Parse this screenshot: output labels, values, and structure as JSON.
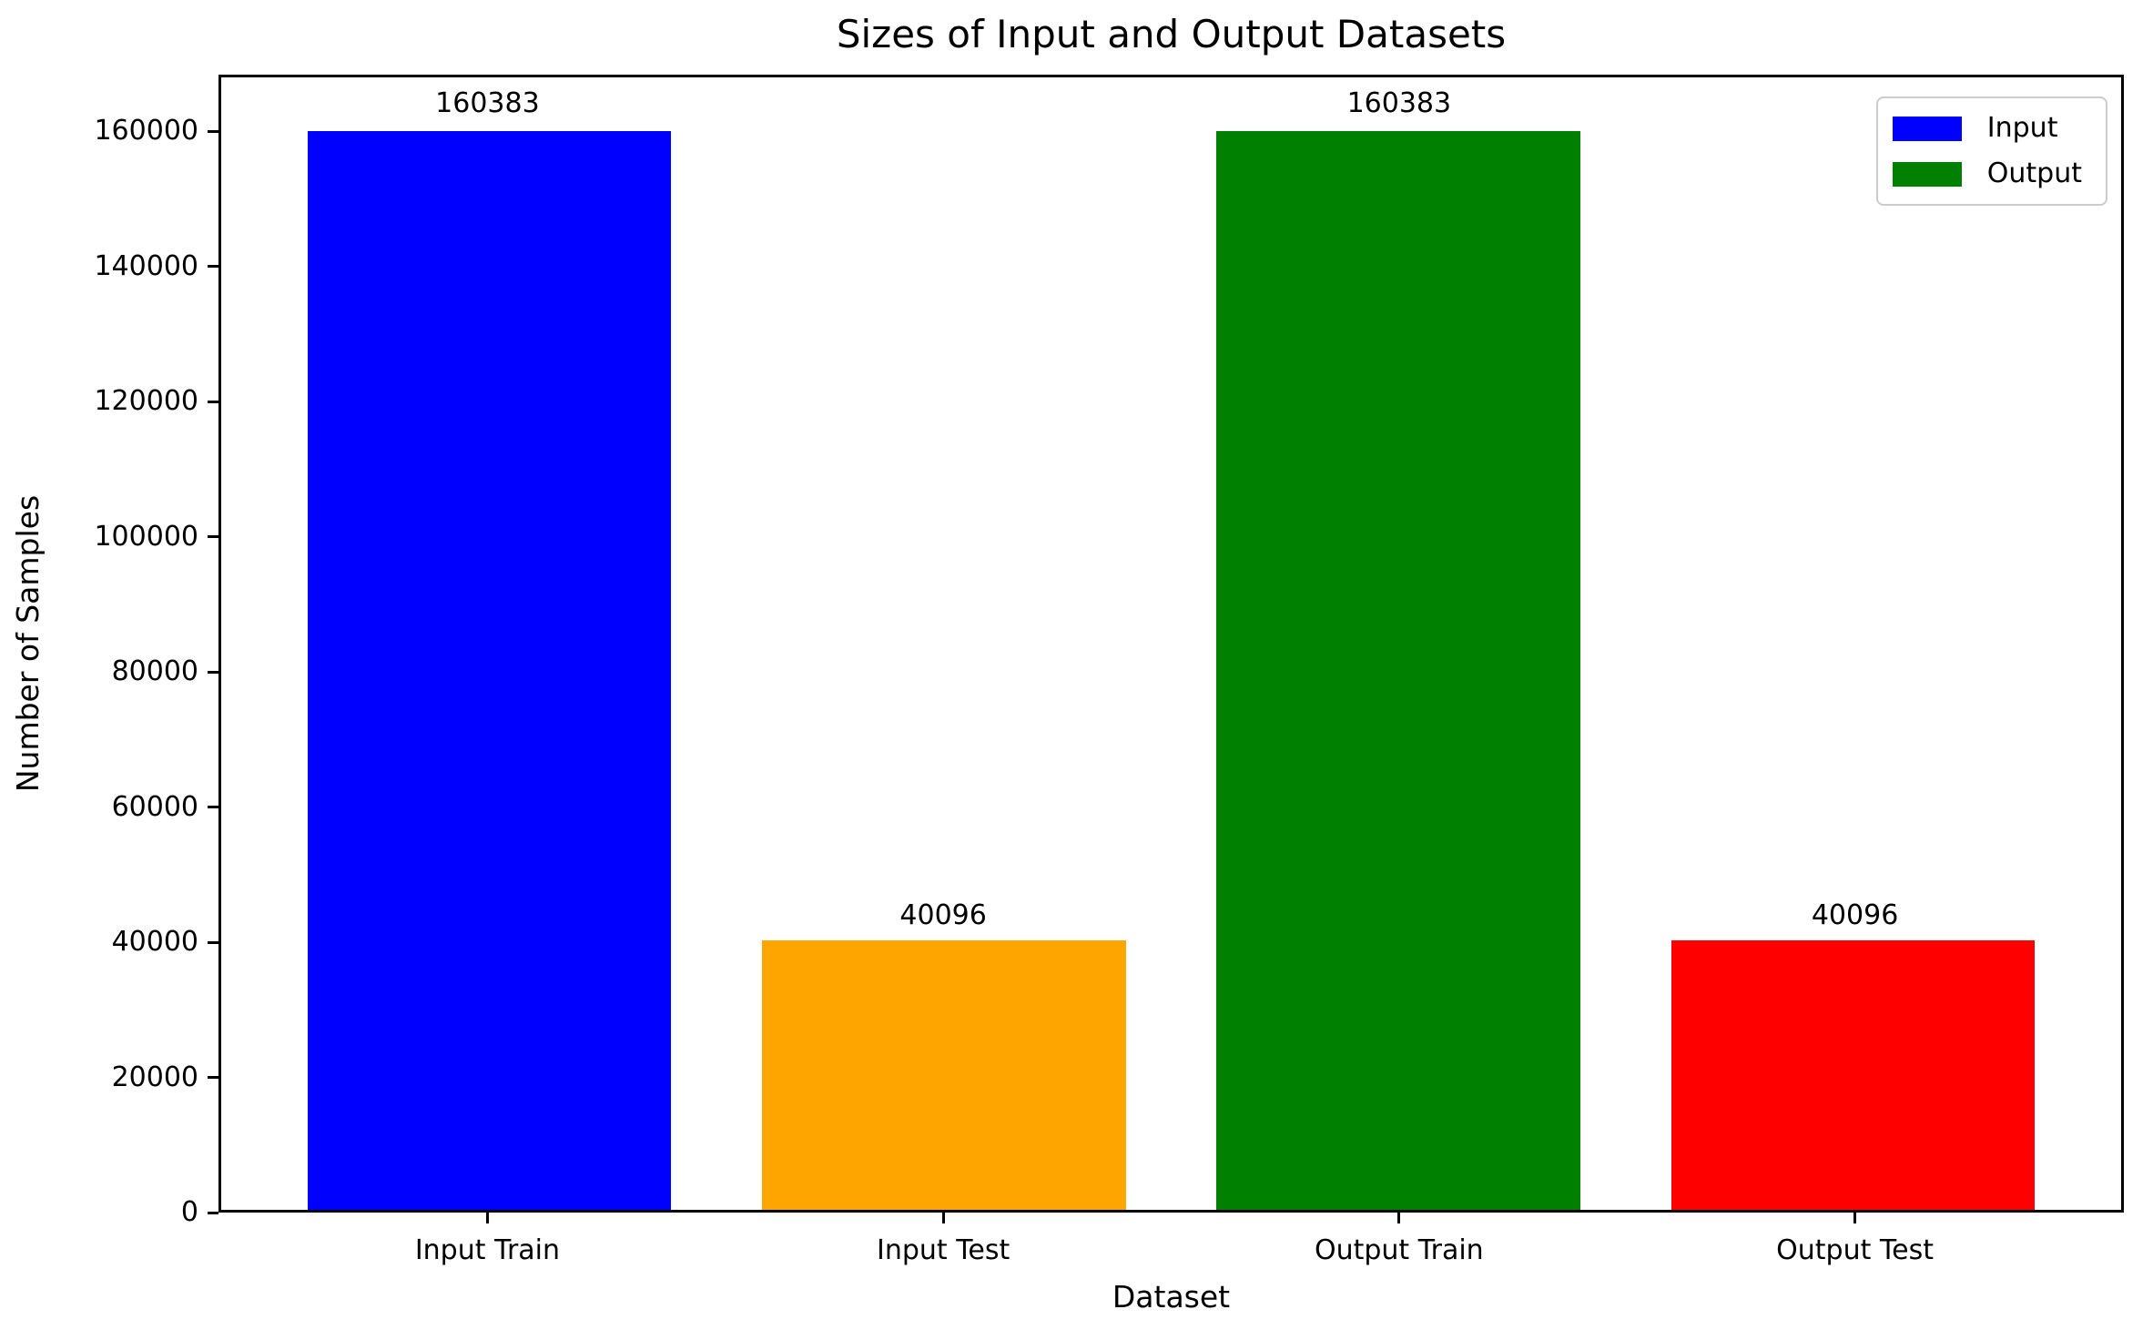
{
  "figure": {
    "background": "#ffffff",
    "axis_color": "#000000"
  },
  "chart_data": {
    "type": "bar",
    "title": "Sizes of Input and Output Datasets",
    "xlabel": "Dataset",
    "ylabel": "Number of Samples",
    "categories": [
      "Input Train",
      "Input Test",
      "Output Train",
      "Output Test"
    ],
    "values": [
      160383,
      40096,
      160383,
      40096
    ],
    "bar_colors": [
      "#0000ff",
      "#ffa500",
      "#008000",
      "#ff0000"
    ],
    "value_labels": [
      "160383",
      "40096",
      "160383",
      "40096"
    ],
    "yticks": [
      0,
      20000,
      40000,
      60000,
      80000,
      100000,
      120000,
      140000,
      160000
    ],
    "ylim": [
      0,
      168400
    ],
    "xlim": [
      -0.59,
      3.59
    ],
    "bar_width": 0.8,
    "grid": false,
    "legend": {
      "position": "upper right",
      "entries": [
        {
          "label": "Input",
          "color": "#0000ff"
        },
        {
          "label": "Output",
          "color": "#008000"
        }
      ]
    }
  }
}
